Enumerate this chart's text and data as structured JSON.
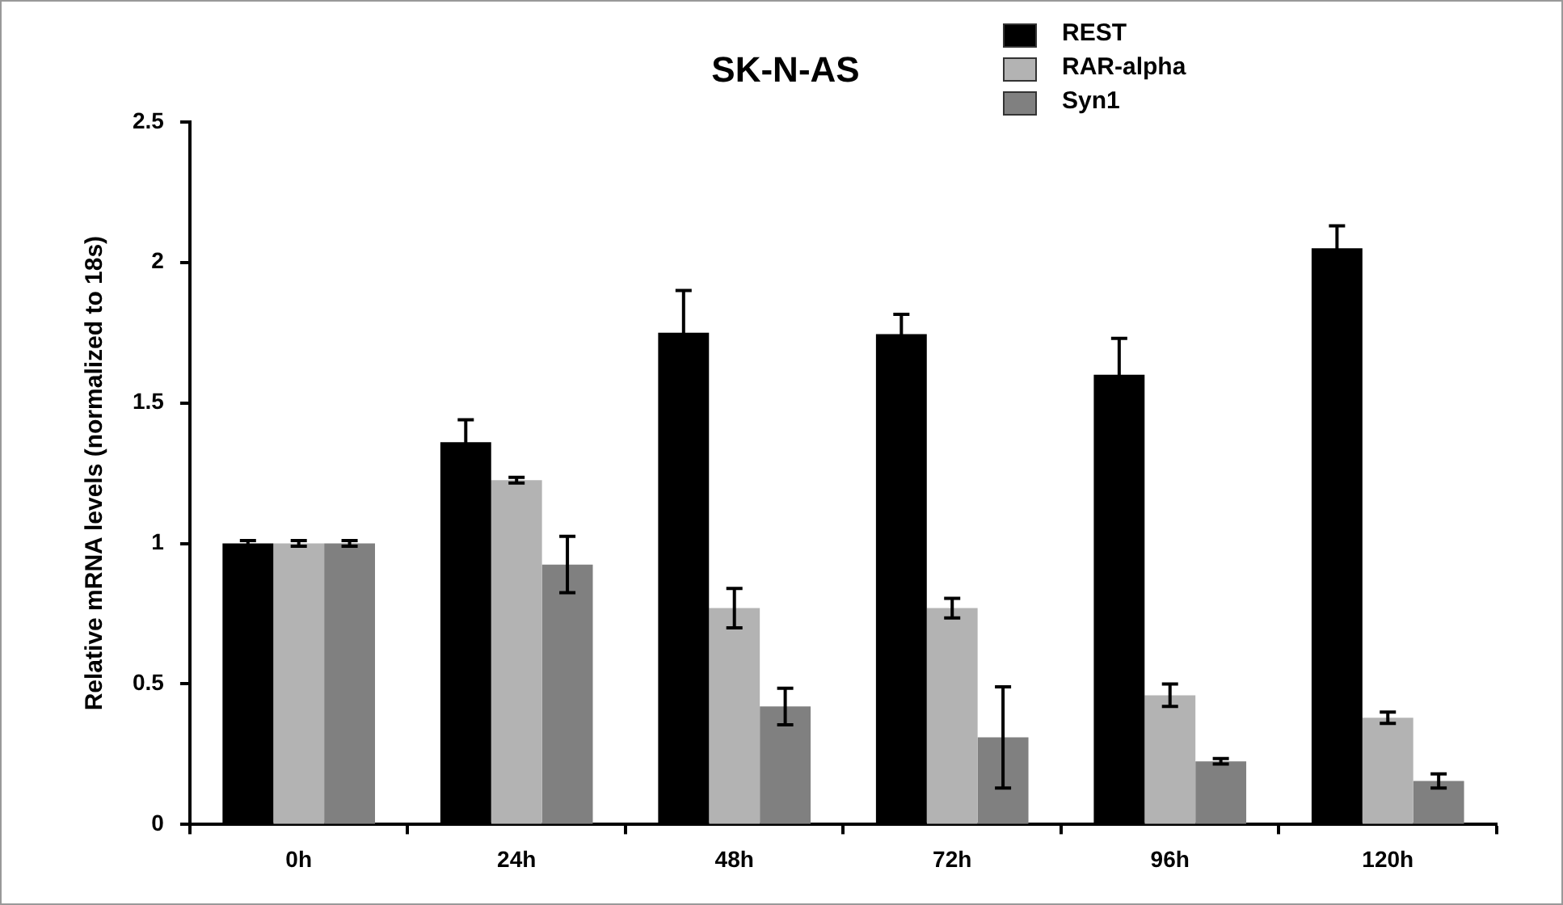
{
  "chart_data": {
    "type": "bar",
    "title": "SK-N-AS",
    "ylabel": "Relative mRNA levels (normalized to 18s)",
    "categories": [
      "0h",
      "24h",
      "48h",
      "72h",
      "96h",
      "120h"
    ],
    "series": [
      {
        "name": "REST",
        "color": "#000000",
        "values": [
          1.0,
          1.36,
          1.75,
          1.745,
          1.6,
          2.05
        ],
        "errors": [
          0.01,
          0.08,
          0.15,
          0.07,
          0.13,
          0.08
        ]
      },
      {
        "name": "RAR-alpha",
        "color": "#b3b3b3",
        "values": [
          1.0,
          1.225,
          0.77,
          0.77,
          0.46,
          0.38
        ],
        "errors": [
          0.01,
          0.01,
          0.07,
          0.035,
          0.04,
          0.02
        ]
      },
      {
        "name": "Syn1",
        "color": "#808080",
        "values": [
          1.0,
          0.925,
          0.42,
          0.31,
          0.225,
          0.155
        ],
        "errors": [
          0.01,
          0.1,
          0.065,
          0.18,
          0.01,
          0.025
        ]
      }
    ],
    "ylim": [
      0,
      2.5
    ],
    "yticks": [
      0,
      0.5,
      1,
      1.5,
      2,
      2.5
    ],
    "grid": false,
    "legend": "top right"
  }
}
